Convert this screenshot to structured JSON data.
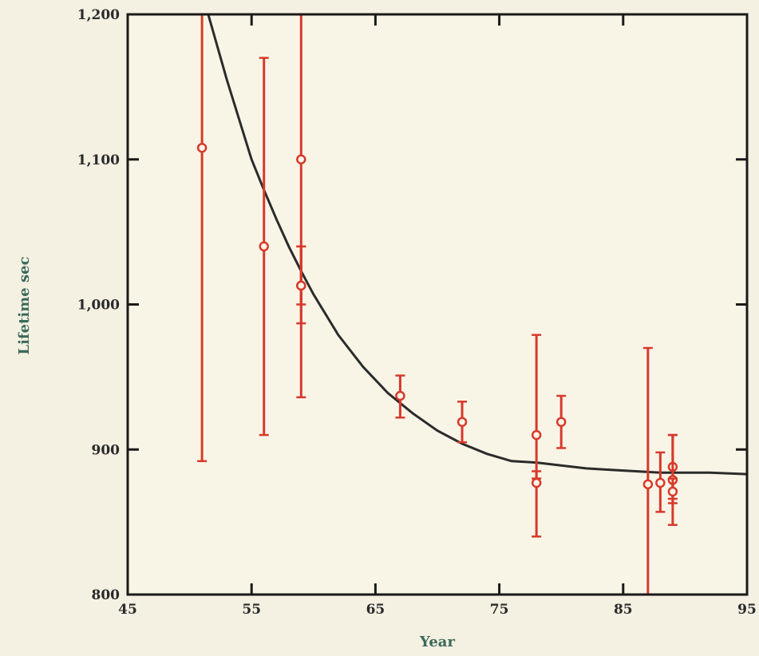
{
  "chart_data": {
    "type": "scatter",
    "title": "",
    "xlabel": "Year",
    "ylabel": "Lifetime sec",
    "xlim": [
      45,
      95
    ],
    "ylim": [
      800,
      1200
    ],
    "x_ticks": [
      45,
      55,
      65,
      75,
      85,
      95
    ],
    "x_tick_labels": [
      "45",
      "55",
      "65",
      "75",
      "85",
      "95"
    ],
    "y_ticks": [
      800,
      900,
      1000,
      1100,
      1200
    ],
    "y_tick_labels": [
      "800",
      "900",
      "1,000",
      "1,100",
      "1,200"
    ],
    "grid": false,
    "colors": {
      "background": "#f4f0e2",
      "plot_background": "#f8f5e7",
      "points": "#d8392b",
      "curve": "#2b2b2b",
      "axis": "#1a1a1a",
      "xlabel_color": "#3a6a5a",
      "ylabel_color": "#3a6a5a"
    },
    "series": [
      {
        "type": "errorbar",
        "points": [
          {
            "x": 51,
            "y": 1108,
            "err_low": 892,
            "err_high": 1200
          },
          {
            "x": 56,
            "y": 1040,
            "err_low": 910,
            "err_high": 1170
          },
          {
            "x": 59,
            "y": 1100,
            "err_low": 1000,
            "err_high": 1200
          },
          {
            "x": 59,
            "y": 1013,
            "err_low": 987,
            "err_high": 1040
          },
          {
            "x": 59,
            "y": 1013,
            "err_low": 936,
            "err_high": 1040
          },
          {
            "x": 67,
            "y": 937,
            "err_low": 922,
            "err_high": 951
          },
          {
            "x": 72,
            "y": 919,
            "err_low": 905,
            "err_high": 933
          },
          {
            "x": 78,
            "y": 910,
            "err_low": 880,
            "err_high": 979
          },
          {
            "x": 78,
            "y": 877,
            "err_low": 840,
            "err_high": 885
          },
          {
            "x": 80,
            "y": 919,
            "err_low": 901,
            "err_high": 937
          },
          {
            "x": 87,
            "y": 876,
            "err_low": 800,
            "err_high": 970
          },
          {
            "x": 88,
            "y": 877,
            "err_low": 857,
            "err_high": 898
          },
          {
            "x": 89,
            "y": 888,
            "err_low": 866,
            "err_high": 910
          },
          {
            "x": 89,
            "y": 879,
            "err_low": 848,
            "err_high": 910
          },
          {
            "x": 89,
            "y": 871,
            "err_low": 863,
            "err_high": 880
          }
        ]
      },
      {
        "type": "curve",
        "x": [
          51.5,
          53,
          55,
          56,
          57,
          58,
          59,
          60,
          62,
          64,
          66,
          68,
          70,
          72,
          74,
          76,
          78,
          80,
          82,
          84,
          86,
          88,
          90,
          92,
          95
        ],
        "y": [
          1200,
          1155,
          1100,
          1079,
          1059,
          1040,
          1023,
          1007,
          979,
          957,
          939,
          925,
          913,
          904,
          897,
          892,
          891,
          889,
          887,
          886,
          885,
          884,
          884,
          884,
          883
        ]
      }
    ]
  }
}
